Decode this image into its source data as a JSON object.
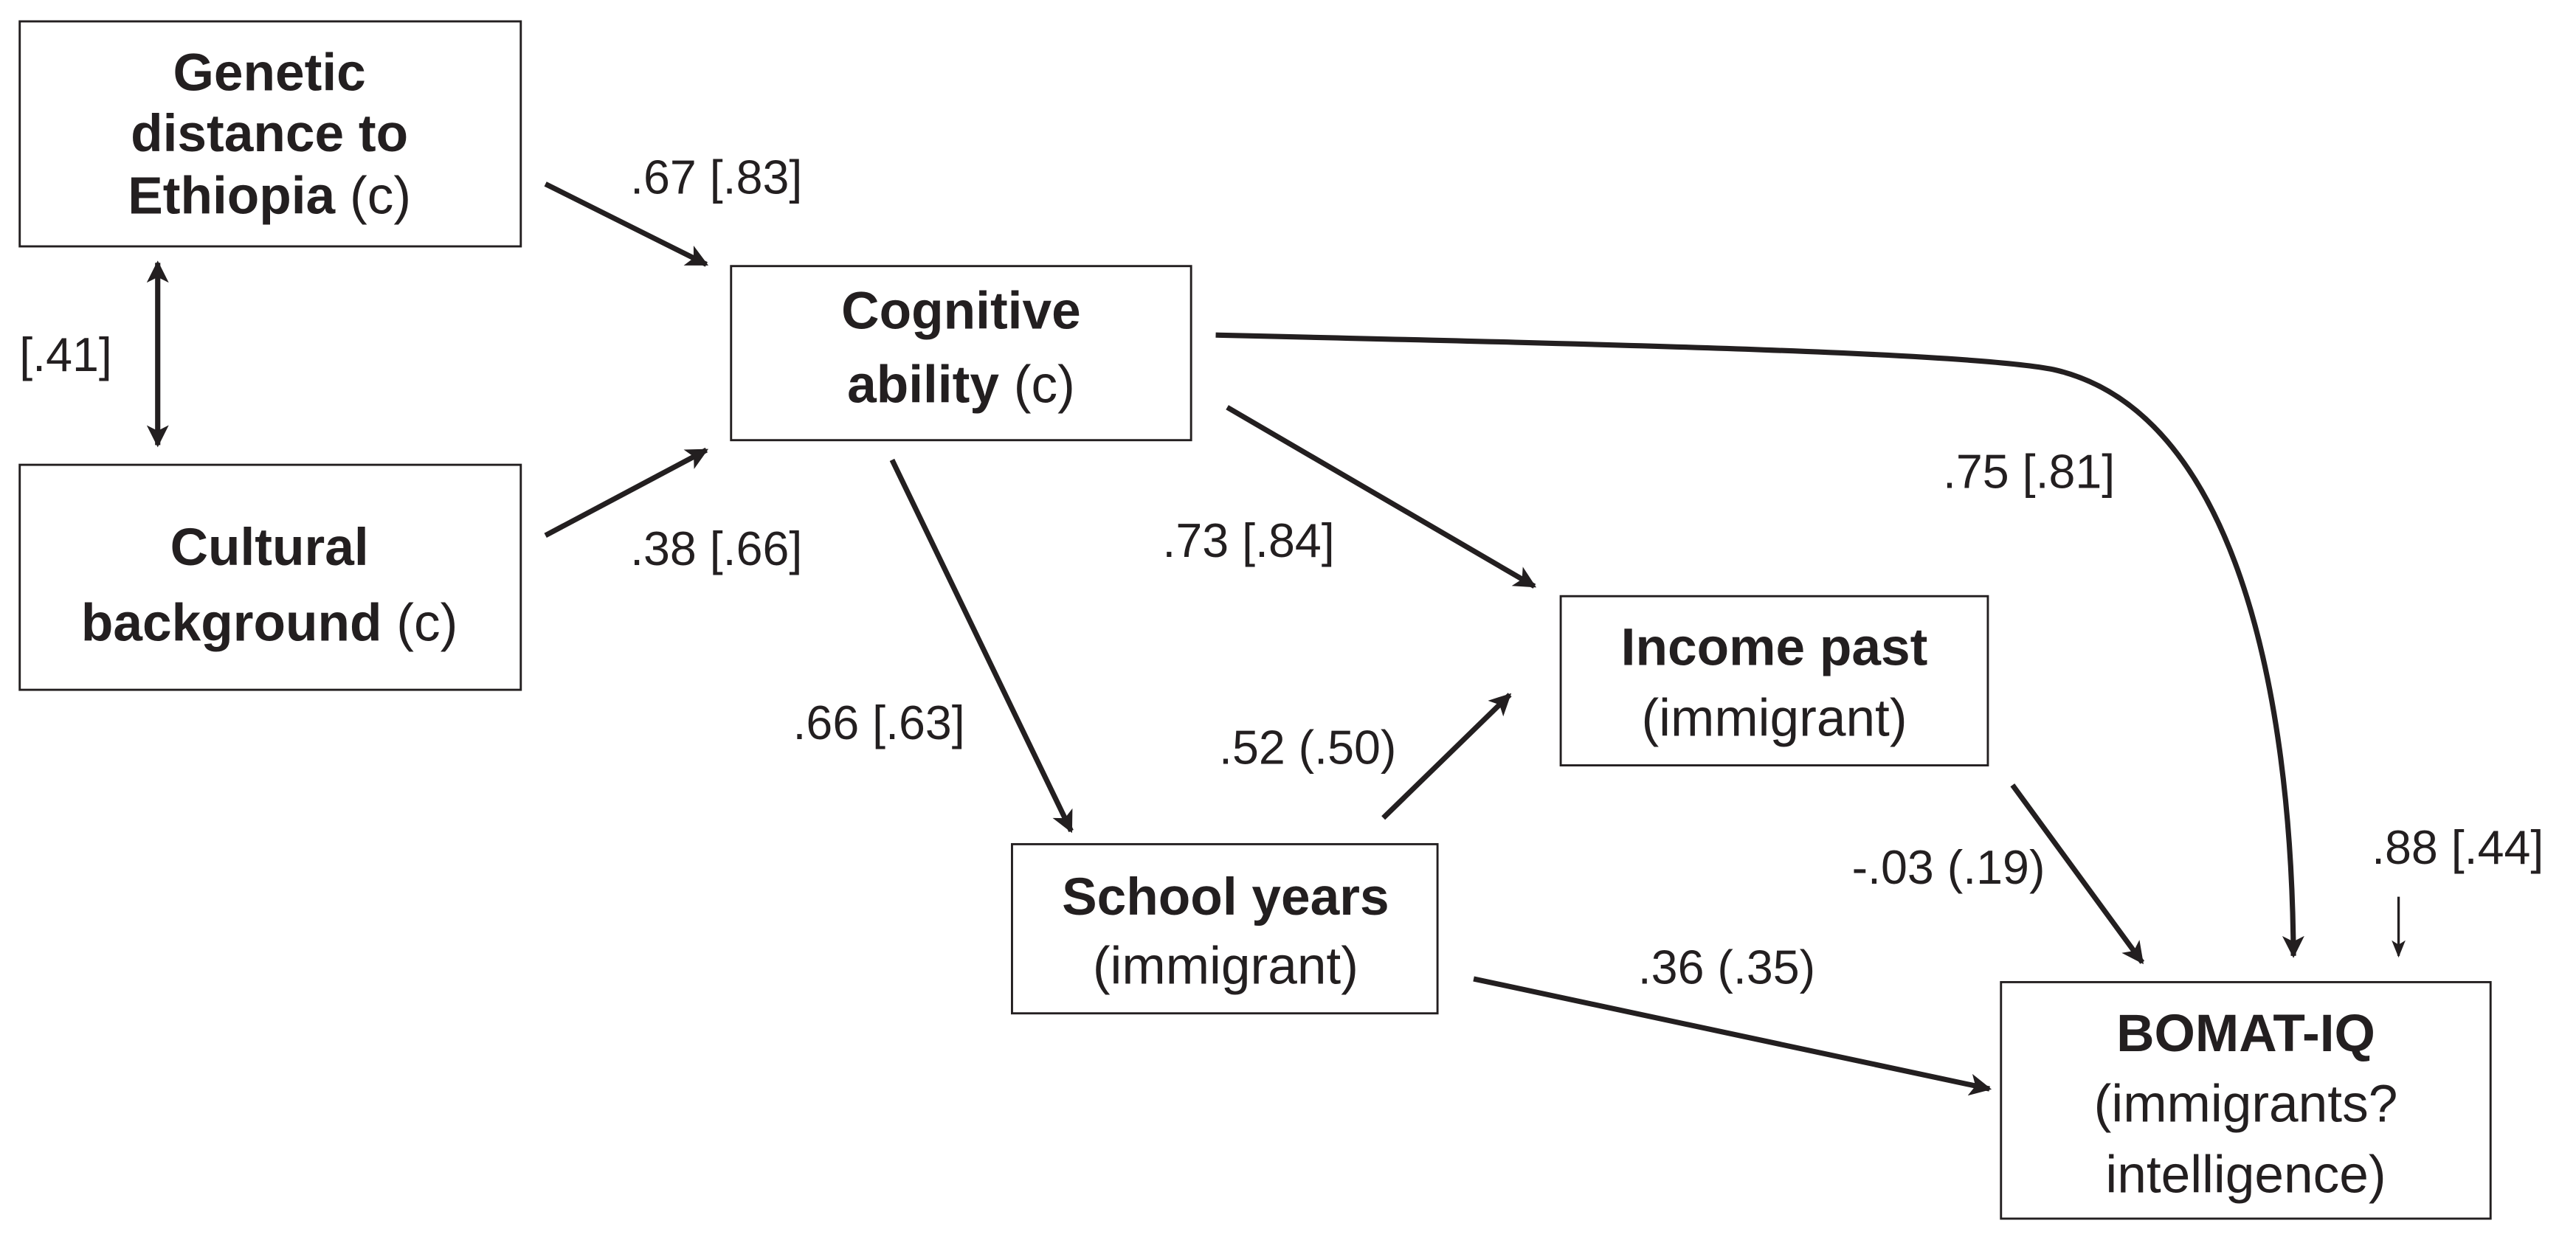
{
  "nodes": {
    "genetic": {
      "line1": "Genetic",
      "line2": "distance to",
      "line3_bold": "Ethiopia",
      "line3_suffix": " (c)"
    },
    "cultural": {
      "line1": "Cultural",
      "line2_bold": "background",
      "line2_suffix": " (c)"
    },
    "cognitive": {
      "line1": "Cognitive",
      "line2_bold": "ability",
      "line2_suffix": " (c)"
    },
    "income": {
      "line1": "Income past",
      "line2": "(immigrant)"
    },
    "school": {
      "line1": "School years",
      "line2": "(immigrant)"
    },
    "bomat": {
      "line1": "BOMAT-IQ",
      "line2": "(immigrants?",
      "line3": "intelligence)"
    }
  },
  "edges": {
    "genetic_cognitive": ".67 [.83]",
    "cultural_cognitive": ".38 [.66]",
    "genetic_cultural": "[.41]",
    "cognitive_school": ".66 [.63]",
    "cognitive_income": ".73 [.84]",
    "cognitive_bomat": ".75 [.81]",
    "school_income": ".52 (.50)",
    "income_bomat": "-.03 (.19)",
    "school_bomat": ".36 (.35)",
    "bomat_residual": ".88 [.44]"
  }
}
